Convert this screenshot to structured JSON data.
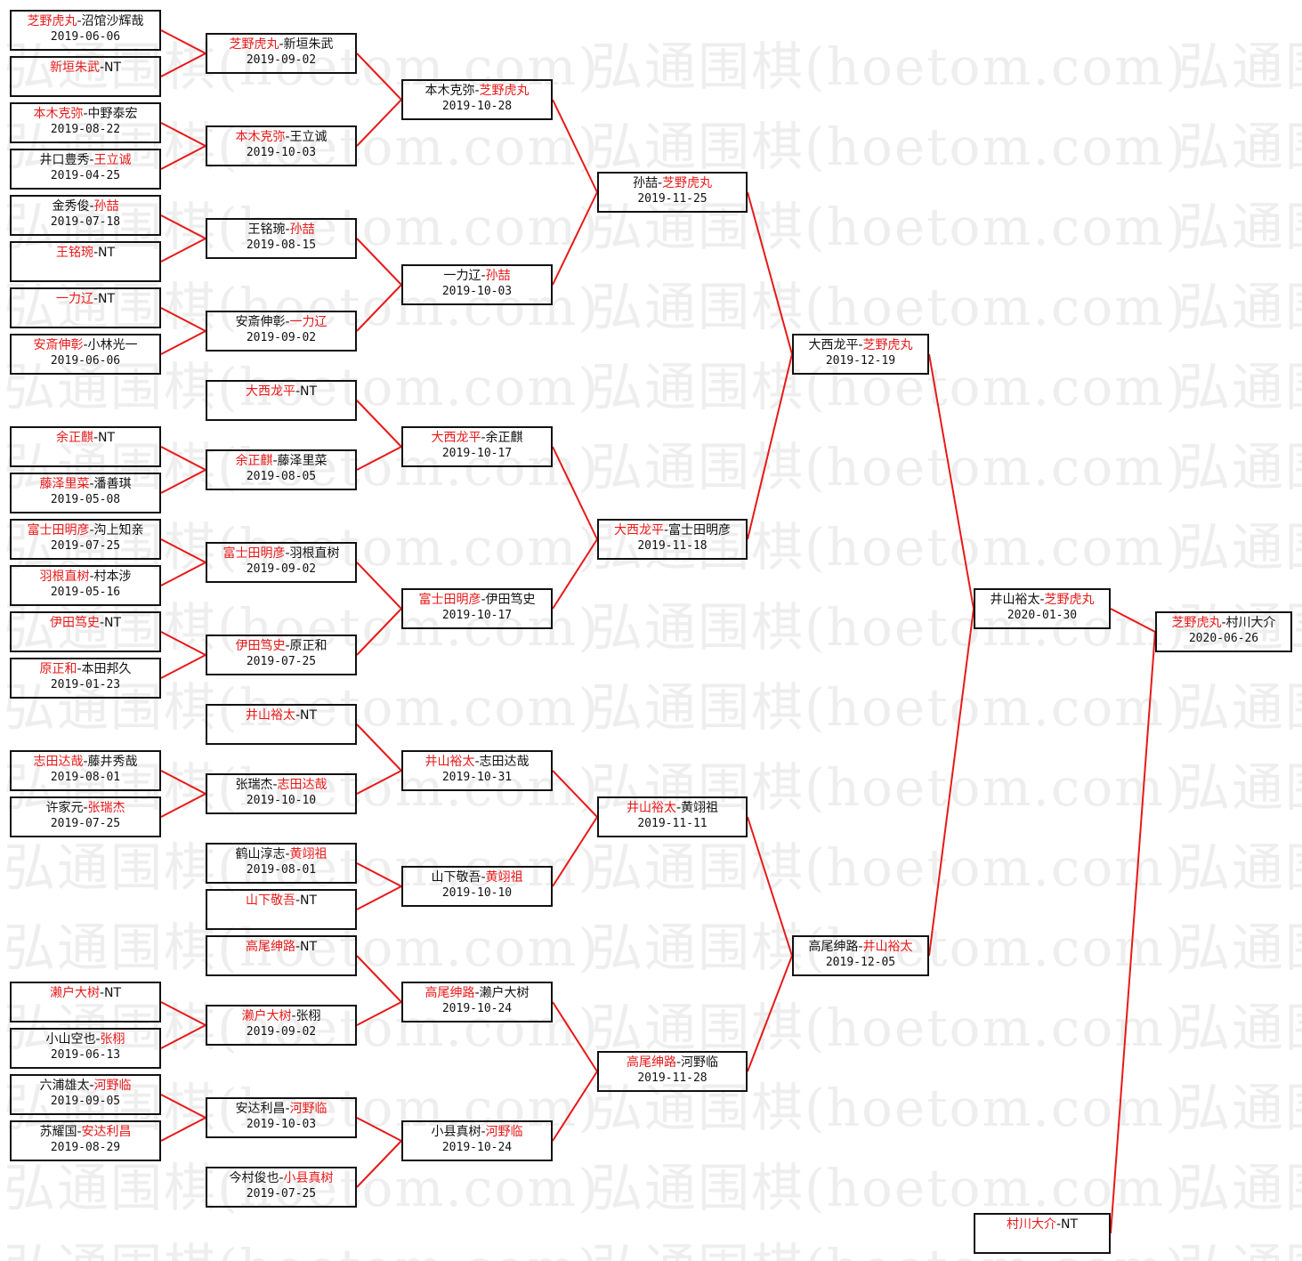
{
  "watermark": "弘通围棋(hoetom.com)",
  "colors": {
    "winner": "#e81919",
    "line": "#e81919",
    "border": "#111111"
  },
  "rounds": [
    {
      "matches": [
        {
          "a": "芝野虎丸",
          "sep": "-",
          "b": "沼馆沙辉哉",
          "win": "a",
          "date": "2019-06-06"
        },
        {
          "a": "新垣朱武",
          "sep": "-",
          "b": "NT",
          "win": "a",
          "date": ""
        },
        {
          "a": "本木克弥",
          "sep": "-",
          "b": "中野泰宏",
          "win": "a",
          "date": "2019-08-22"
        },
        {
          "a": "井口豊秀",
          "sep": "-",
          "b": "王立诚",
          "win": "b",
          "date": "2019-04-25"
        },
        {
          "a": "金秀俊",
          "sep": "-",
          "b": "孙喆",
          "win": "b",
          "date": "2019-07-18"
        },
        {
          "a": "王铭琬",
          "sep": "-",
          "b": "NT",
          "win": "a",
          "date": ""
        },
        {
          "a": "一力辽",
          "sep": "-",
          "b": "NT",
          "win": "a",
          "date": ""
        },
        {
          "a": "安斎伸彰",
          "sep": "-",
          "b": "小林光一",
          "win": "a",
          "date": "2019-06-06"
        },
        {
          "a": "余正麒",
          "sep": "-",
          "b": "NT",
          "win": "a",
          "date": ""
        },
        {
          "a": "藤泽里菜",
          "sep": "-",
          "b": "潘善琪",
          "win": "a",
          "date": "2019-05-08"
        },
        {
          "a": "富士田明彦",
          "sep": "-",
          "b": "沟上知亲",
          "win": "a",
          "date": "2019-07-25"
        },
        {
          "a": "羽根直树",
          "sep": "-",
          "b": "村本涉",
          "win": "a",
          "date": "2019-05-16"
        },
        {
          "a": "伊田笃史",
          "sep": "-",
          "b": "NT",
          "win": "a",
          "date": ""
        },
        {
          "a": "原正和",
          "sep": "-",
          "b": "本田邦久",
          "win": "a",
          "date": "2019-01-23"
        },
        {
          "a": "志田达哉",
          "sep": "-",
          "b": "藤井秀哉",
          "win": "a",
          "date": "2019-08-01"
        },
        {
          "a": "许家元",
          "sep": "-",
          "b": "张瑞杰",
          "win": "b",
          "date": "2019-07-25"
        },
        {
          "a": "濑户大树",
          "sep": "-",
          "b": "NT",
          "win": "a",
          "date": ""
        },
        {
          "a": "小山空也",
          "sep": "-",
          "b": "张栩",
          "win": "b",
          "date": "2019-06-13"
        },
        {
          "a": "六浦雄太",
          "sep": "-",
          "b": "河野临",
          "win": "b",
          "date": "2019-09-05"
        },
        {
          "a": "苏耀国",
          "sep": "-",
          "b": "安达利昌",
          "win": "b",
          "date": "2019-08-29"
        }
      ]
    },
    {
      "matches": [
        {
          "a": "芝野虎丸",
          "sep": "-",
          "b": "新垣朱武",
          "win": "a",
          "date": "2019-09-02"
        },
        {
          "a": "本木克弥",
          "sep": "-",
          "b": "王立诚",
          "win": "a",
          "date": "2019-10-03"
        },
        {
          "a": "王铭琬",
          "sep": "-",
          "b": "孙喆",
          "win": "b",
          "date": "2019-08-15"
        },
        {
          "a": "安斎伸彰",
          "sep": "-",
          "b": "一力辽",
          "win": "b",
          "date": "2019-09-02"
        },
        {
          "a": "大西龙平",
          "sep": "-",
          "b": "NT",
          "win": "a",
          "date": ""
        },
        {
          "a": "余正麒",
          "sep": "-",
          "b": "藤泽里菜",
          "win": "a",
          "date": "2019-08-05"
        },
        {
          "a": "富士田明彦",
          "sep": "-",
          "b": "羽根直树",
          "win": "a",
          "date": "2019-09-02"
        },
        {
          "a": "伊田笃史",
          "sep": "-",
          "b": "原正和",
          "win": "a",
          "date": "2019-07-25"
        },
        {
          "a": "井山裕太",
          "sep": "-",
          "b": "NT",
          "win": "a",
          "date": ""
        },
        {
          "a": "张瑞杰",
          "sep": "-",
          "b": "志田达哉",
          "win": "b",
          "date": "2019-10-10"
        },
        {
          "a": "鹤山淳志",
          "sep": "-",
          "b": "黄翊祖",
          "win": "b",
          "date": "2019-08-01"
        },
        {
          "a": "山下敬吾",
          "sep": "-",
          "b": "NT",
          "win": "a",
          "date": ""
        },
        {
          "a": "高尾绅路",
          "sep": "-",
          "b": "NT",
          "win": "a",
          "date": ""
        },
        {
          "a": "濑户大树",
          "sep": "-",
          "b": "张栩",
          "win": "a",
          "date": "2019-09-02"
        },
        {
          "a": "安达利昌",
          "sep": "-",
          "b": "河野临",
          "win": "b",
          "date": "2019-10-03"
        },
        {
          "a": "今村俊也",
          "sep": "-",
          "b": "小县真树",
          "win": "b",
          "date": "2019-07-25"
        }
      ]
    },
    {
      "matches": [
        {
          "a": "本木克弥",
          "sep": "-",
          "b": "芝野虎丸",
          "win": "b",
          "date": "2019-10-28"
        },
        {
          "a": "一力辽",
          "sep": "-",
          "b": "孙喆",
          "win": "b",
          "date": "2019-10-03"
        },
        {
          "a": "大西龙平",
          "sep": "-",
          "b": "余正麒",
          "win": "a",
          "date": "2019-10-17"
        },
        {
          "a": "富士田明彦",
          "sep": "-",
          "b": "伊田笃史",
          "win": "a",
          "date": "2019-10-17"
        },
        {
          "a": "井山裕太",
          "sep": "-",
          "b": "志田达哉",
          "win": "a",
          "date": "2019-10-31"
        },
        {
          "a": "山下敬吾",
          "sep": "-",
          "b": "黄翊祖",
          "win": "b",
          "date": "2019-10-10"
        },
        {
          "a": "高尾绅路",
          "sep": "-",
          "b": "濑户大树",
          "win": "a",
          "date": "2019-10-24"
        },
        {
          "a": "小县真树",
          "sep": "-",
          "b": "河野临",
          "win": "b",
          "date": "2019-10-24"
        }
      ]
    },
    {
      "matches": [
        {
          "a": "孙喆",
          "sep": "-",
          "b": "芝野虎丸",
          "win": "b",
          "date": "2019-11-25"
        },
        {
          "a": "大西龙平",
          "sep": "-",
          "b": "富士田明彦",
          "win": "a",
          "date": "2019-11-18"
        },
        {
          "a": "井山裕太",
          "sep": "-",
          "b": "黄翊祖",
          "win": "a",
          "date": "2019-11-11"
        },
        {
          "a": "高尾绅路",
          "sep": "-",
          "b": "河野临",
          "win": "a",
          "date": "2019-11-28"
        }
      ]
    },
    {
      "matches": [
        {
          "a": "大西龙平",
          "sep": "-",
          "b": "芝野虎丸",
          "win": "b",
          "date": "2019-12-19"
        },
        {
          "a": "高尾绅路",
          "sep": "-",
          "b": "井山裕太",
          "win": "b",
          "date": "2019-12-05"
        }
      ]
    },
    {
      "matches": [
        {
          "a": "井山裕太",
          "sep": "-",
          "b": "芝野虎丸",
          "win": "b",
          "date": "2020-01-30"
        },
        {
          "a": "村川大介",
          "sep": "-",
          "b": "NT",
          "win": "a",
          "date": ""
        }
      ]
    },
    {
      "matches": [
        {
          "a": "芝野虎丸",
          "sep": "-",
          "b": "村川大介",
          "win": "a",
          "date": "2020-06-26"
        }
      ]
    }
  ]
}
